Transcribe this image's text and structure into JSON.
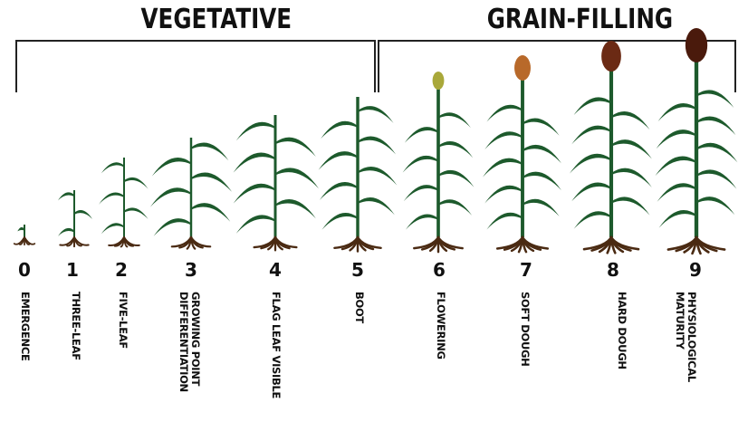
{
  "phases": {
    "vegetative": "VEGETATIVE",
    "grain_filling": "GRAIN-FILLING"
  },
  "stages": [
    {
      "num": "0",
      "label": "EMERGENCE"
    },
    {
      "num": "1",
      "label": "THREE-LEAF"
    },
    {
      "num": "2",
      "label": "FIVE-LEAF"
    },
    {
      "num": "3",
      "label": "GROWING POINT DIFFERENTIATION"
    },
    {
      "num": "4",
      "label": "FLAG LEAF VISIBLE"
    },
    {
      "num": "5",
      "label": "BOOT"
    },
    {
      "num": "6",
      "label": "FLOWERING"
    },
    {
      "num": "7",
      "label": "SOFT DOUGH"
    },
    {
      "num": "8",
      "label": "HARD DOUGH"
    },
    {
      "num": "9",
      "label": "PHYSIOLOGICAL MATURITY"
    }
  ],
  "colors": {
    "leaf": "#1d5a2c",
    "root": "#4a2a12",
    "bracket": "#222222",
    "head_flowering": "#a9a83a",
    "head_soft_dough": "#b8692a",
    "head_hard_dough": "#6b2a14",
    "head_maturity": "#4a1a0c"
  }
}
